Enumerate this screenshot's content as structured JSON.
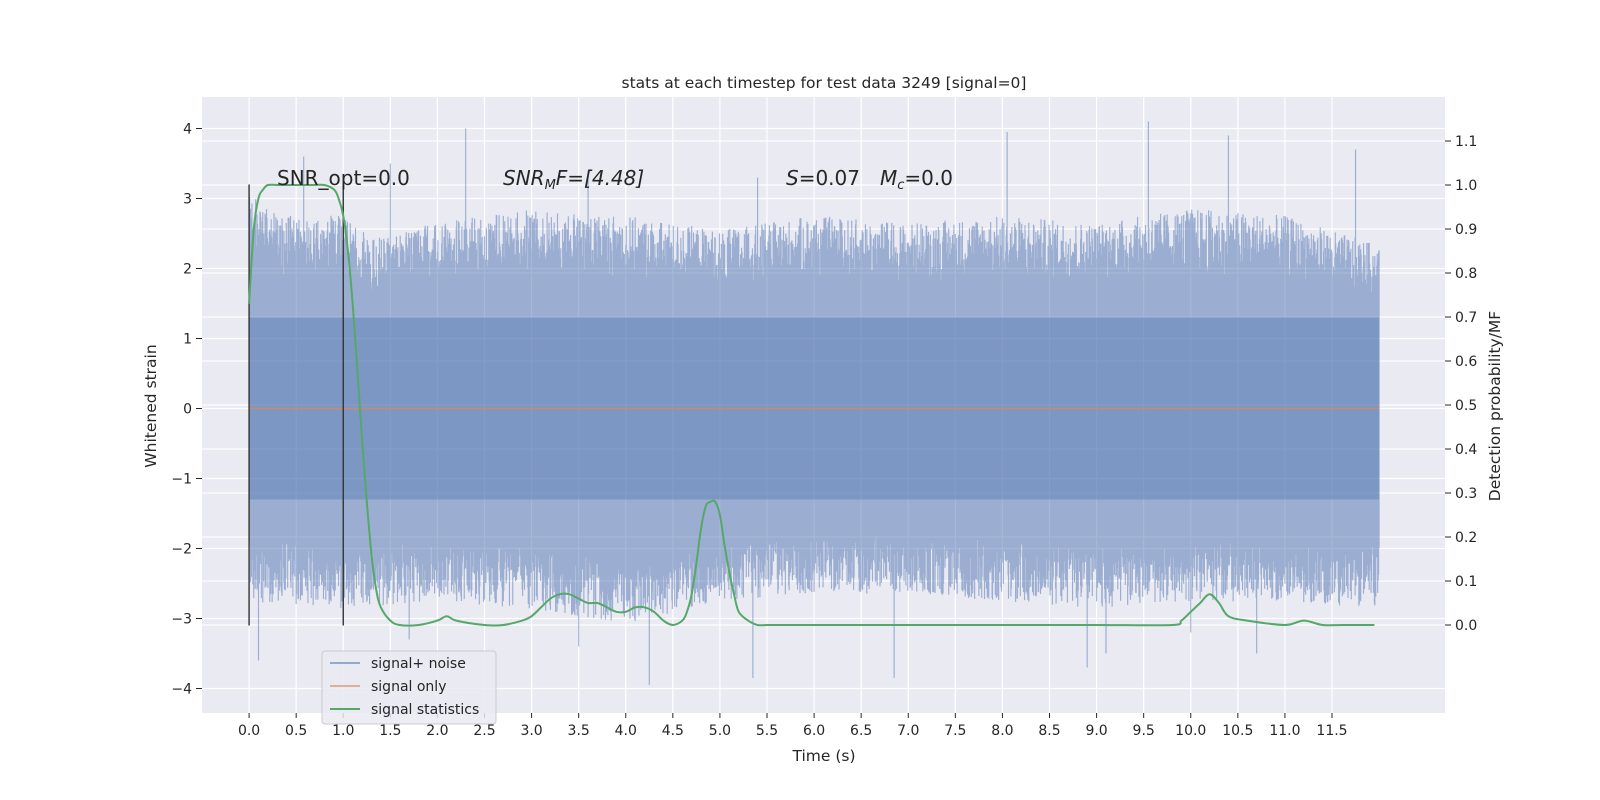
{
  "chart_data": {
    "type": "line",
    "title": "stats at each timestep for test data 3249 [signal=0]",
    "xlabel": "Time (s)",
    "ylabel": "Whitened strain",
    "ylabel_right": "Detection probability/MF",
    "xlim": [
      -0.5,
      12.7
    ],
    "ylim": [
      -4.35,
      4.45
    ],
    "ylim_right": [
      -0.2,
      1.2
    ],
    "x_ticks": [
      "0.0",
      "0.5",
      "1.0",
      "1.5",
      "2.0",
      "2.5",
      "3.0",
      "3.5",
      "4.0",
      "4.5",
      "5.0",
      "5.5",
      "6.0",
      "6.5",
      "7.0",
      "7.5",
      "8.0",
      "8.5",
      "9.0",
      "9.5",
      "10.0",
      "10.5",
      "11.0",
      "11.5"
    ],
    "y_ticks": [
      "4",
      "3",
      "2",
      "1",
      "0",
      "−1",
      "−2",
      "−3",
      "−4"
    ],
    "y_tick_values": [
      4,
      3,
      2,
      1,
      0,
      -1,
      -2,
      -3,
      -4
    ],
    "y_ticks_right": [
      "1.1",
      "1.0",
      "0.9",
      "0.8",
      "0.7",
      "0.6",
      "0.5",
      "0.4",
      "0.3",
      "0.2",
      "0.1",
      "0.0"
    ],
    "y_tick_values_right": [
      1.1,
      1.0,
      0.9,
      0.8,
      0.7,
      0.6,
      0.5,
      0.4,
      0.3,
      0.2,
      0.1,
      0.0
    ],
    "grid": true,
    "legend_position": "lower-left",
    "legend": [
      "signal+ noise",
      "signal only",
      "signal statistics"
    ],
    "colors": {
      "background": "#eaeaf2",
      "grid": "#ffffff",
      "noise": "#4c72b0",
      "signal": "#dd8452",
      "statistics": "#55a868",
      "window": "#333333"
    },
    "annotations": {
      "snr_opt": "SNR_opt=0.0",
      "snr_mf_label": "SNR",
      "snr_mf_sub": "M",
      "snr_mf_rest": "F=[4.48]",
      "s_label": "S",
      "s_value": "=0.07",
      "mc_label": "M",
      "mc_sub": "c",
      "mc_value": "=0.0"
    },
    "window_markers": [
      0.0,
      1.0
    ],
    "window_marker_range": [
      -3.1,
      3.2
    ],
    "noise_series": {
      "name": "signal+ noise",
      "x_range": [
        0.0,
        12.0
      ],
      "envelope_upper": [
        [
          0.0,
          2.9
        ],
        [
          0.3,
          2.6
        ],
        [
          1.0,
          2.6
        ],
        [
          1.3,
          2.3
        ],
        [
          2.0,
          2.5
        ],
        [
          3.0,
          2.7
        ],
        [
          4.0,
          2.6
        ],
        [
          5.0,
          2.4
        ],
        [
          6.0,
          2.6
        ],
        [
          7.0,
          2.5
        ],
        [
          8.0,
          2.6
        ],
        [
          9.0,
          2.5
        ],
        [
          10.0,
          2.7
        ],
        [
          11.0,
          2.6
        ],
        [
          12.0,
          2.2
        ]
      ],
      "envelope_lower": [
        [
          0.0,
          -2.6
        ],
        [
          1.0,
          -2.7
        ],
        [
          2.0,
          -2.6
        ],
        [
          3.0,
          -2.7
        ],
        [
          4.0,
          -2.9
        ],
        [
          5.0,
          -2.6
        ],
        [
          6.0,
          -2.5
        ],
        [
          7.0,
          -2.5
        ],
        [
          8.0,
          -2.6
        ],
        [
          9.0,
          -2.7
        ],
        [
          10.0,
          -2.6
        ],
        [
          11.0,
          -2.6
        ],
        [
          12.0,
          -2.7
        ]
      ],
      "peaks": [
        [
          0.58,
          3.6
        ],
        [
          1.5,
          3.5
        ],
        [
          2.3,
          4.0
        ],
        [
          3.6,
          3.4
        ],
        [
          5.4,
          3.3
        ],
        [
          8.05,
          3.95
        ],
        [
          9.55,
          4.1
        ],
        [
          10.4,
          3.9
        ],
        [
          11.75,
          3.7
        ],
        [
          0.1,
          -3.6
        ],
        [
          1.7,
          -3.3
        ],
        [
          3.5,
          -3.4
        ],
        [
          4.25,
          -3.95
        ],
        [
          5.35,
          -3.85
        ],
        [
          6.85,
          -3.85
        ],
        [
          8.9,
          -3.7
        ],
        [
          9.1,
          -3.5
        ],
        [
          10.0,
          -3.2
        ],
        [
          10.7,
          -3.5
        ]
      ]
    },
    "signal_series": {
      "name": "signal only",
      "x": [
        0.0,
        12.0
      ],
      "values": [
        0.0,
        0.0
      ]
    },
    "statistics_series": {
      "name": "signal statistics",
      "axis": "right",
      "x": [
        0.0,
        0.05,
        0.1,
        0.15,
        0.2,
        0.3,
        0.5,
        0.7,
        0.8,
        0.9,
        0.95,
        1.0,
        1.05,
        1.1,
        1.15,
        1.2,
        1.25,
        1.3,
        1.35,
        1.4,
        1.5,
        1.6,
        1.8,
        2.0,
        2.1,
        2.2,
        2.5,
        2.7,
        2.9,
        3.0,
        3.1,
        3.2,
        3.3,
        3.4,
        3.5,
        3.6,
        3.7,
        3.8,
        3.9,
        4.0,
        4.1,
        4.2,
        4.3,
        4.4,
        4.5,
        4.6,
        4.65,
        4.7,
        4.75,
        4.8,
        4.85,
        4.9,
        4.95,
        5.0,
        5.05,
        5.1,
        5.15,
        5.2,
        5.3,
        5.4,
        5.5,
        5.7,
        6.0,
        7.0,
        8.0,
        9.0,
        9.8,
        9.9,
        10.0,
        10.1,
        10.2,
        10.3,
        10.4,
        10.6,
        11.0,
        11.2,
        11.4,
        11.6,
        11.8,
        11.95
      ],
      "values": [
        0.73,
        0.9,
        0.97,
        0.99,
        1.0,
        1.0,
        1.0,
        1.0,
        1.0,
        0.99,
        0.97,
        0.93,
        0.85,
        0.73,
        0.58,
        0.42,
        0.28,
        0.16,
        0.08,
        0.04,
        0.01,
        0.0,
        0.0,
        0.01,
        0.02,
        0.01,
        0.0,
        0.0,
        0.01,
        0.02,
        0.04,
        0.06,
        0.07,
        0.07,
        0.06,
        0.05,
        0.05,
        0.04,
        0.03,
        0.03,
        0.04,
        0.04,
        0.03,
        0.01,
        0.0,
        0.01,
        0.03,
        0.07,
        0.14,
        0.22,
        0.27,
        0.28,
        0.28,
        0.25,
        0.18,
        0.12,
        0.07,
        0.03,
        0.01,
        0.0,
        0.0,
        0.0,
        0.0,
        0.0,
        0.0,
        0.0,
        0.0,
        0.01,
        0.03,
        0.05,
        0.07,
        0.05,
        0.02,
        0.01,
        0.0,
        0.01,
        0.0,
        0.0,
        0.0,
        0.0
      ]
    }
  }
}
